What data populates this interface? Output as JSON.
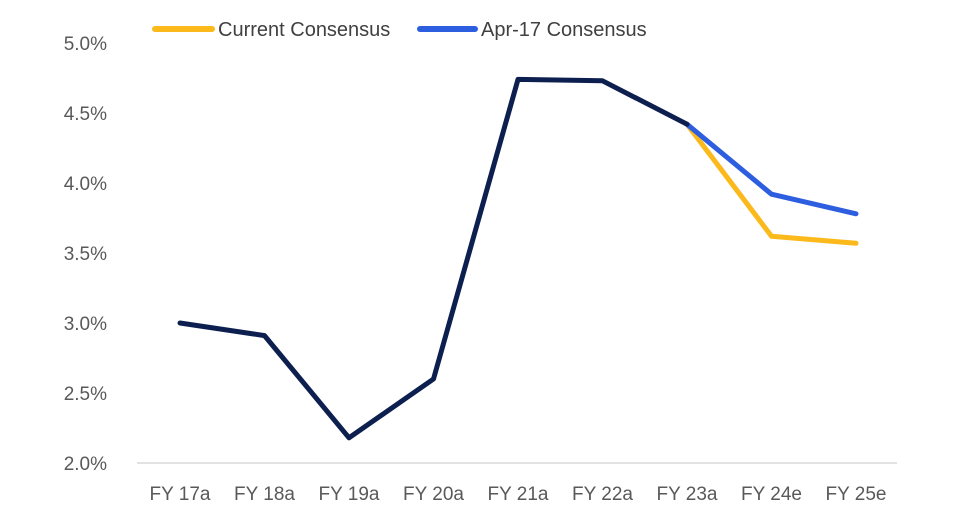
{
  "chart_data": {
    "type": "line",
    "title": "",
    "xlabel": "",
    "ylabel": "",
    "categories": [
      "FY 17a",
      "FY 18a",
      "FY 19a",
      "FY 20a",
      "FY 21a",
      "FY 22a",
      "FY 23a",
      "FY 24e",
      "FY 25e"
    ],
    "y_ticks": [
      "2.0%",
      "2.5%",
      "3.0%",
      "3.5%",
      "4.0%",
      "4.5%",
      "5.0%"
    ],
    "ylim": [
      2.0,
      5.0
    ],
    "grid": false,
    "legend_position": "top",
    "actual_series": {
      "values": [
        3.0,
        2.91,
        2.18,
        2.6,
        4.74,
        4.73,
        4.42,
        null,
        null
      ],
      "color": "#0c1f4f"
    },
    "series": [
      {
        "name": "Current Consensus",
        "values": [
          null,
          null,
          null,
          null,
          null,
          null,
          4.42,
          3.62,
          3.57
        ],
        "color": "#fbb91b"
      },
      {
        "name": "Apr-17 Consensus",
        "values": [
          null,
          null,
          null,
          null,
          null,
          null,
          4.42,
          3.92,
          3.78
        ],
        "color": "#2e5ee0"
      }
    ]
  }
}
